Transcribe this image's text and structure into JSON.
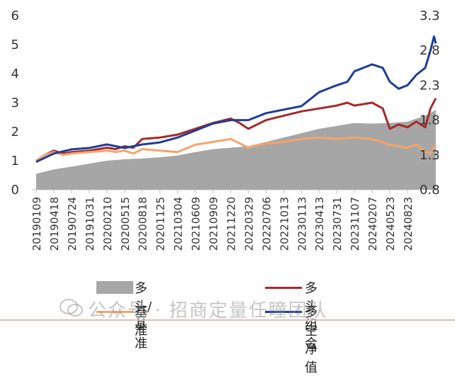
{
  "chart_data": {
    "type": "area+line",
    "y_left": {
      "lim": [
        0,
        6
      ],
      "ticks": [
        "0",
        "1",
        "2",
        "3",
        "4",
        "5",
        "6"
      ]
    },
    "y_right": {
      "lim": [
        0.8,
        3.3
      ],
      "ticks": [
        "0.8",
        "1.3",
        "1.8",
        "2.3",
        "2.8",
        "3.3"
      ]
    },
    "x_ticks": [
      "20190109",
      "20190418",
      "20190724",
      "20191031",
      "20200210",
      "20200515",
      "20200818",
      "20201125",
      "20210304",
      "20210609",
      "20210909",
      "20211220",
      "20220329",
      "20220706",
      "20221013",
      "20230113",
      "20230413",
      "20230731",
      "20231107",
      "20240207",
      "20240523",
      "20240823"
    ],
    "series": [
      {
        "name": "多头/基准",
        "type": "area",
        "axis": "left",
        "color": "#a6a6a6",
        "x": [
          0,
          1,
          2,
          3,
          4,
          5,
          6,
          7,
          8,
          9,
          10,
          11,
          12,
          13,
          14,
          15,
          16,
          17,
          18,
          19,
          20,
          21,
          22,
          22.6
        ],
        "values": [
          0.55,
          0.7,
          0.8,
          0.9,
          1.0,
          1.05,
          1.08,
          1.12,
          1.18,
          1.3,
          1.4,
          1.45,
          1.5,
          1.65,
          1.8,
          1.95,
          2.1,
          2.2,
          2.3,
          2.28,
          2.3,
          2.35,
          2.55,
          2.75
        ]
      },
      {
        "name": "多头组合",
        "type": "line",
        "axis": "left",
        "color": "#a52a2a",
        "x": [
          0,
          0.5,
          1,
          1.5,
          2,
          3,
          4,
          4.5,
          5,
          5.5,
          6,
          7,
          8,
          9,
          10,
          11,
          11.5,
          12,
          13,
          14,
          15,
          16,
          17,
          17.6,
          18,
          19,
          19.6,
          20,
          20.5,
          21,
          21.5,
          22,
          22.3,
          22.6
        ],
        "values": [
          1.0,
          1.2,
          1.35,
          1.25,
          1.3,
          1.35,
          1.45,
          1.4,
          1.5,
          1.45,
          1.75,
          1.8,
          1.9,
          2.1,
          2.3,
          2.45,
          2.3,
          2.1,
          2.4,
          2.55,
          2.7,
          2.8,
          2.9,
          3.0,
          2.9,
          3.0,
          2.8,
          2.1,
          2.25,
          2.15,
          2.35,
          2.15,
          2.8,
          3.15
        ]
      },
      {
        "name": "基准",
        "type": "line",
        "axis": "left",
        "color": "#f4a46b",
        "x": [
          0,
          0.5,
          1,
          1.5,
          2,
          3,
          4,
          4.5,
          5,
          5.5,
          6,
          7,
          8,
          9,
          10,
          11,
          11.5,
          12,
          12.3,
          13,
          14,
          15,
          16,
          17,
          18,
          19,
          20,
          20.5,
          21,
          21.5,
          22,
          22.3,
          22.6
        ],
        "values": [
          1.0,
          1.2,
          1.3,
          1.2,
          1.25,
          1.3,
          1.35,
          1.3,
          1.35,
          1.25,
          1.4,
          1.35,
          1.3,
          1.55,
          1.65,
          1.75,
          1.6,
          1.45,
          1.5,
          1.6,
          1.65,
          1.75,
          1.8,
          1.75,
          1.8,
          1.75,
          1.55,
          1.5,
          1.45,
          1.55,
          1.3,
          1.25,
          1.55
        ]
      },
      {
        "name": "多空净值",
        "type": "line",
        "axis": "right",
        "color": "#1f3d99",
        "x": [
          0,
          1,
          2,
          3,
          4,
          5,
          6,
          7,
          8,
          9,
          10,
          11,
          12,
          13,
          14,
          15,
          16,
          17,
          17.6,
          18,
          19,
          19.6,
          20,
          20.5,
          21,
          21.5,
          22,
          22.3,
          22.5,
          22.6
        ],
        "values": [
          1.2,
          1.32,
          1.38,
          1.4,
          1.45,
          1.4,
          1.45,
          1.48,
          1.55,
          1.65,
          1.75,
          1.8,
          1.8,
          1.9,
          1.95,
          2.0,
          2.2,
          2.3,
          2.35,
          2.5,
          2.6,
          2.55,
          2.35,
          2.25,
          2.3,
          2.45,
          2.55,
          2.8,
          3.0,
          2.9
        ]
      }
    ],
    "legend": [
      "多头/基准",
      "多头组合",
      "基准",
      "多空净值"
    ]
  },
  "watermark": "公众号 · 招商定量任瞳团队"
}
